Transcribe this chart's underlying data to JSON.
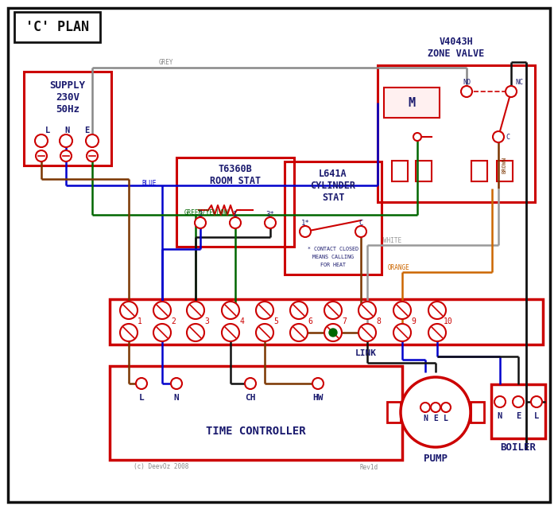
{
  "title": "'C' PLAN",
  "bg_color": "#ffffff",
  "red": "#cc0000",
  "blue": "#0000cc",
  "green": "#006600",
  "grey": "#888888",
  "brown": "#7a3500",
  "orange": "#cc6600",
  "black": "#111111",
  "white_wire": "#999999",
  "text_color": "#1a1a6e",
  "supply_text": "SUPPLY\n230V\n50Hz",
  "zone_valve_title": "V4043H\nZONE VALVE",
  "room_stat_title": "T6360B\nROOM STAT",
  "cyl_stat_title": "L641A\nCYLINDER\nSTAT",
  "time_ctrl_label": "TIME CONTROLLER",
  "pump_label": "PUMP",
  "boiler_label": "BOILER",
  "link_label": "LINK",
  "copyright": "(c) DeevOz 2008",
  "rev": "Rev1d"
}
